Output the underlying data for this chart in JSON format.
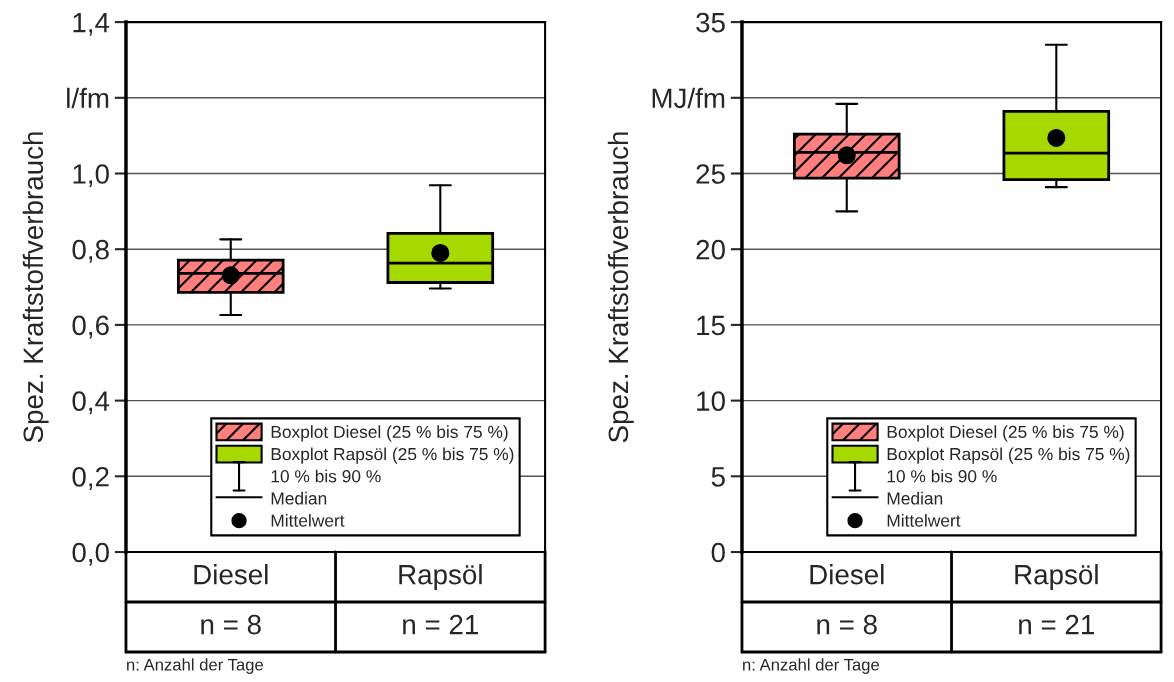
{
  "chart_data": [
    {
      "type": "box",
      "ylabel": "Spez. Kraftstoffverbrauch",
      "categories": [
        "Diesel",
        "Rapsöl"
      ],
      "series": [
        {
          "name": "Boxplot Diesel (25 % bis 75 %)",
          "color": "#ff7f7f",
          "boxes": [
            {
              "low": 0.626,
              "q1": 0.686,
              "median": 0.736,
              "q3": 0.771,
              "high": 0.826,
              "mean": 0.731
            },
            null
          ]
        },
        {
          "name": "Boxplot Rapsöl (25 % bis 75 %)",
          "color": "#a6d900",
          "boxes": [
            null,
            {
              "low": 0.696,
              "q1": 0.712,
              "median": 0.763,
              "q3": 0.842,
              "high": 0.969,
              "mean": 0.79
            }
          ]
        }
      ],
      "ylim": [
        0,
        1.4
      ],
      "yticks": [
        {
          "value": 0,
          "label": "0,0"
        },
        {
          "value": 0.2,
          "label": "0,2"
        },
        {
          "value": 0.4,
          "label": "0,4"
        },
        {
          "value": 0.6,
          "label": "0,6"
        },
        {
          "value": 0.8,
          "label": "0,8"
        },
        {
          "value": 1.0,
          "label": "1,0"
        },
        {
          "value": 1.2,
          "label": "l/fm"
        },
        {
          "value": 1.4,
          "label": "1,4"
        }
      ],
      "grid": "y",
      "legend": "bottom right",
      "marker": "circle",
      "annotations": [
        "10 % bis 90 %",
        "Median",
        "Mittelwert",
        "n = 8",
        "n = 21",
        "n: Anzahl der Tage"
      ]
    },
    {
      "type": "box",
      "ylabel": "Spez. Kraftstoffverbrauch",
      "categories": [
        "Diesel",
        "Rapsöl"
      ],
      "series": [
        {
          "name": "Boxplot Diesel (25 % bis 75 %)",
          "color": "#ff7f7f",
          "boxes": [
            {
              "low": 22.5,
              "q1": 24.7,
              "median": 26.4,
              "q3": 27.6,
              "high": 29.6,
              "mean": 26.2
            },
            null
          ]
        },
        {
          "name": "Boxplot Rapsöl (25 % bis 75 %)",
          "color": "#a6d900",
          "boxes": [
            null,
            {
              "low": 24.1,
              "q1": 24.6,
              "median": 26.35,
              "q3": 29.1,
              "high": 33.5,
              "mean": 27.35
            }
          ]
        }
      ],
      "ylim": [
        0,
        35
      ],
      "yticks": [
        0,
        5,
        10,
        15,
        20,
        25,
        {
          "value": 30,
          "label": "MJ/fm"
        },
        35
      ],
      "grid": "y",
      "legend": "bottom right",
      "marker": "circle",
      "annotations": [
        "10 % bis 90 %",
        "Median",
        "Mittelwert",
        "n = 8",
        "n = 21",
        "n: Anzahl der Tage"
      ]
    }
  ]
}
